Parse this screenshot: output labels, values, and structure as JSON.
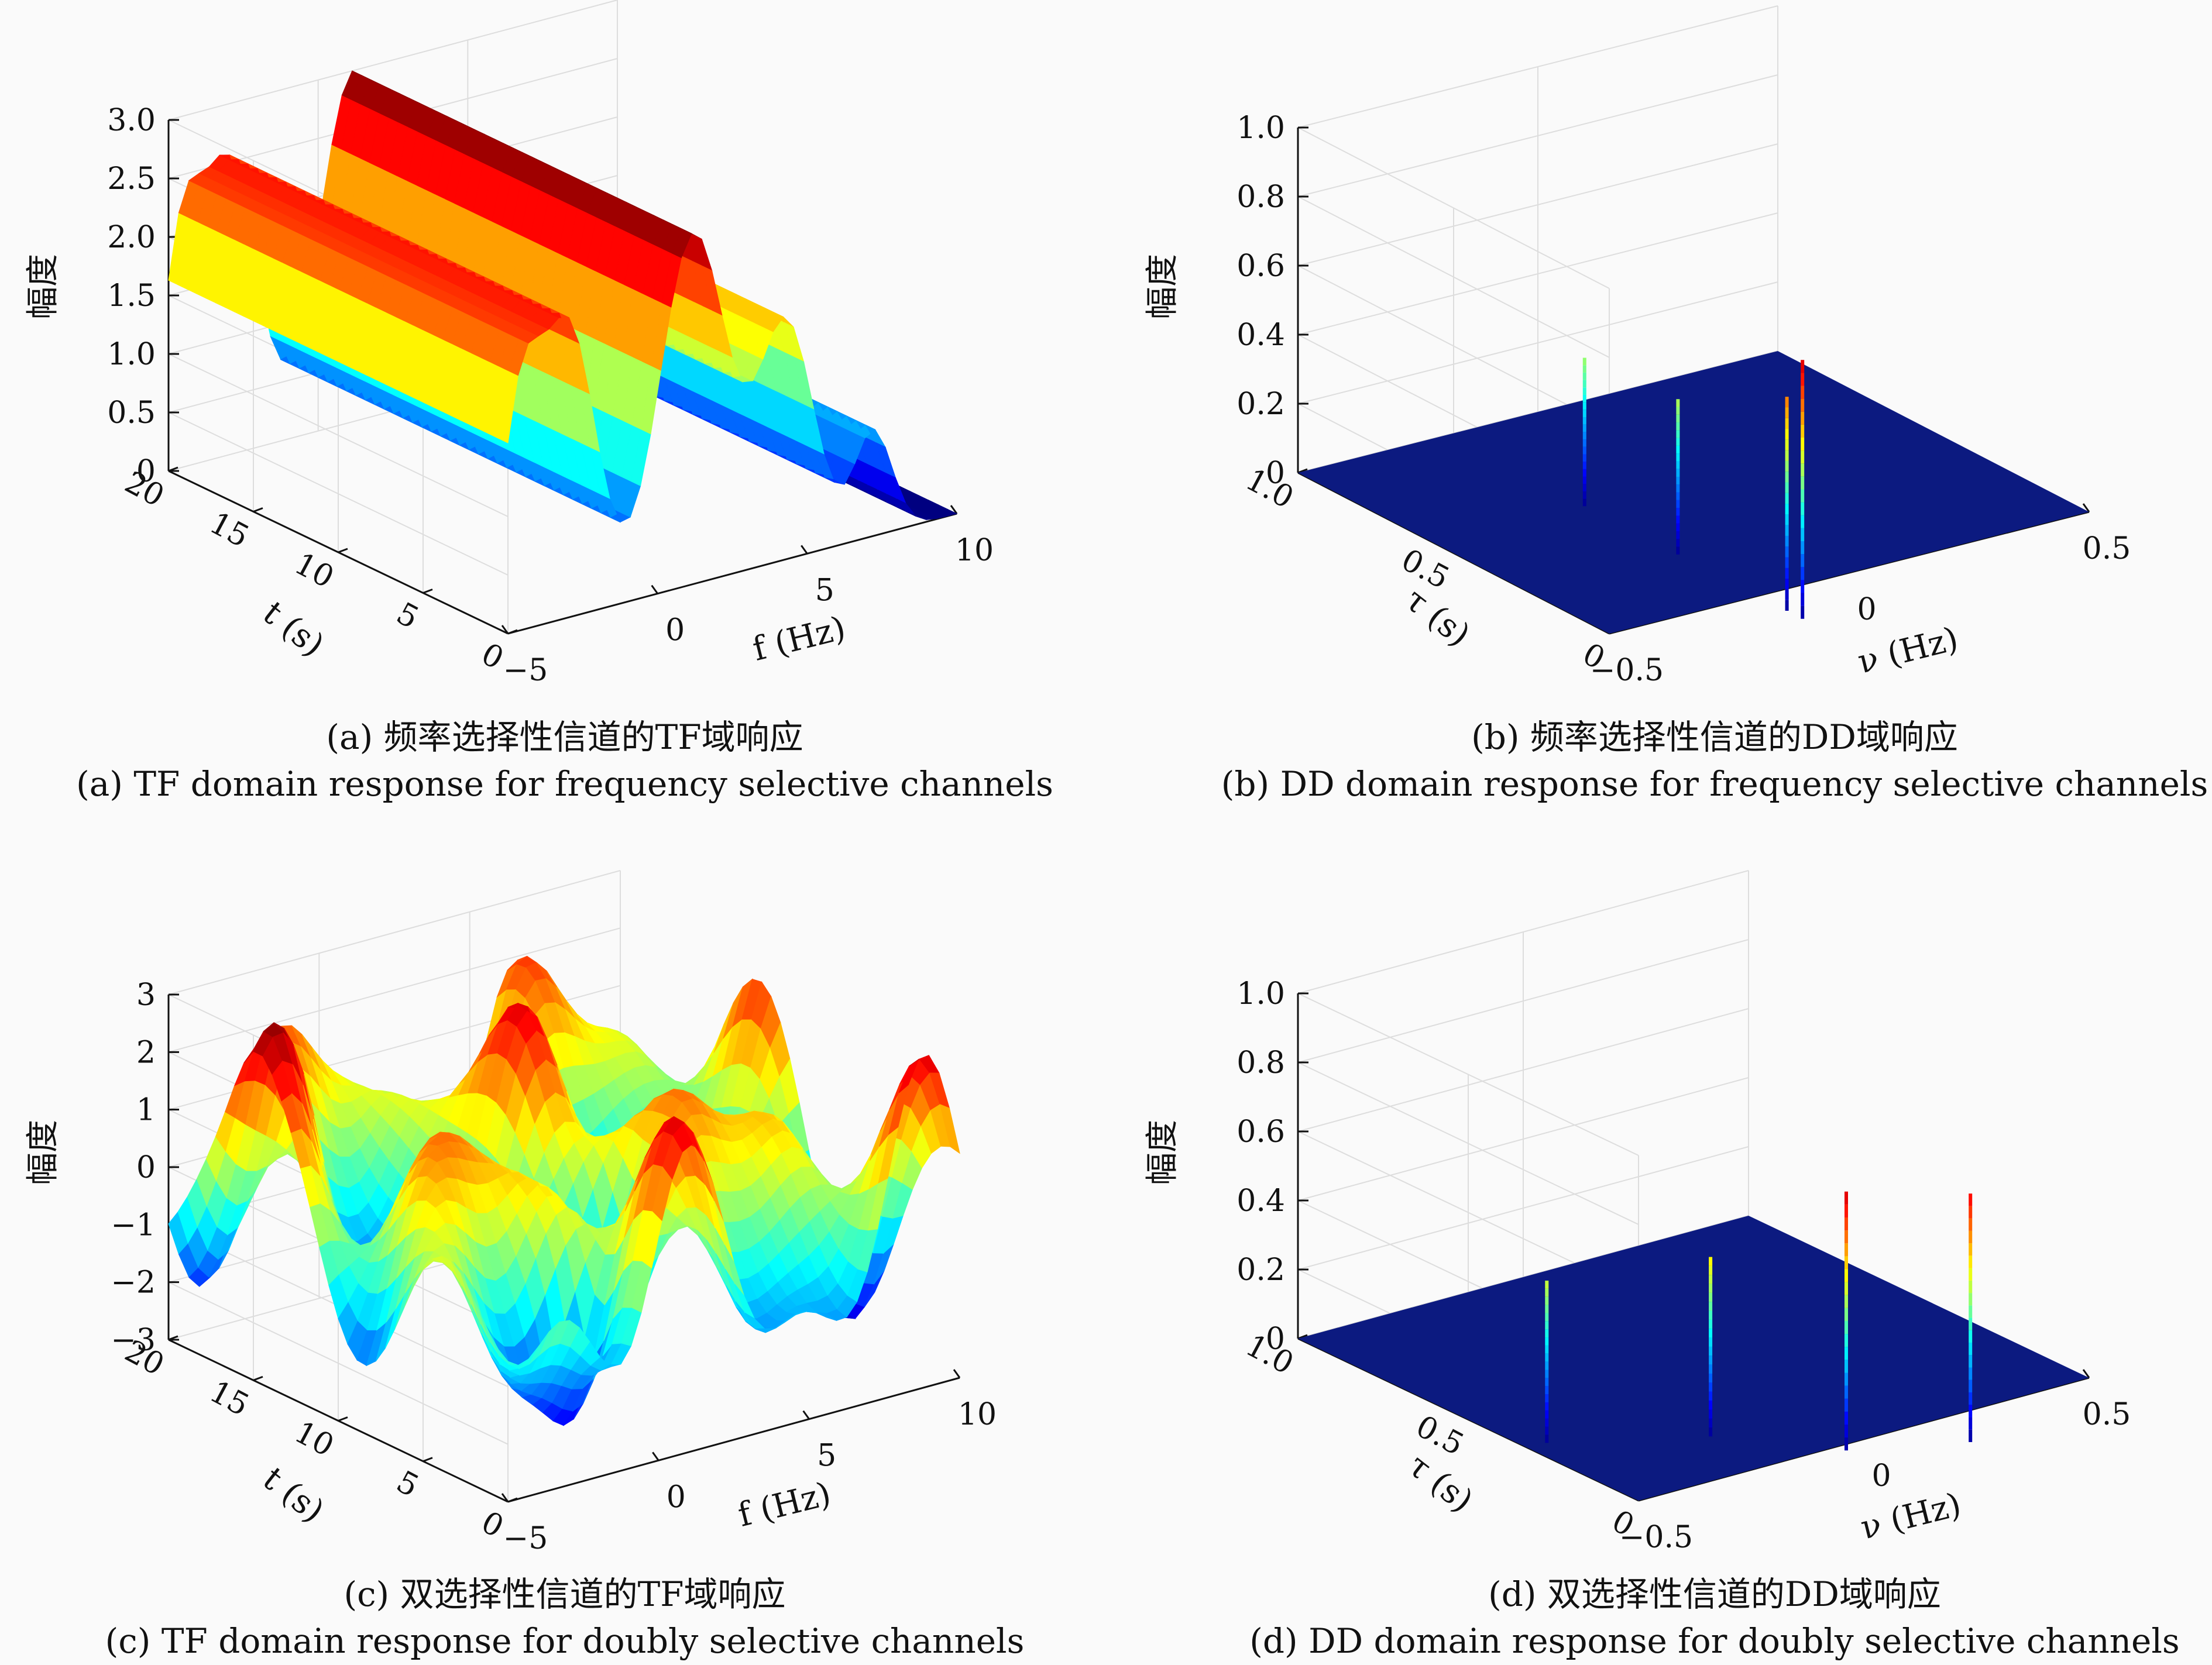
{
  "colors": {
    "background": "#fafafa",
    "colormap": "jet",
    "floor": "#0c1a80",
    "axis": "#111111",
    "grid": "#dddddd"
  },
  "chart_data": [
    {
      "id": "a",
      "type": "surface3d",
      "caption_cn": "(a) 频率选择性信道的TF域响应",
      "caption_en": "(a) TF domain response for frequency selective channels",
      "zlabel": "幅度",
      "xlabel": "f (Hz)",
      "ylabel": "t (s)",
      "xlim": [
        -5,
        10
      ],
      "ylim": [
        0,
        20
      ],
      "zlim": [
        0,
        3
      ],
      "xticks": [
        "−5",
        "0",
        "5",
        "10"
      ],
      "yticks": [
        "0",
        "5",
        "10",
        "15",
        "20"
      ],
      "zticks": [
        "0",
        "0.5",
        "1.0",
        "1.5",
        "2.0",
        "2.5",
        "3.0"
      ],
      "zmax": 3.0
    },
    {
      "id": "b",
      "type": "stem3d",
      "caption_cn": "(b) 频率选择性信道的DD域响应",
      "caption_en": "(b) DD domain response for frequency selective channels",
      "zlabel": "幅度",
      "xlabel": "ν (Hz)",
      "ylabel": "τ (s)",
      "xlim": [
        -0.5,
        0.5
      ],
      "ylim": [
        0,
        1.0
      ],
      "zlim": [
        0,
        1.0
      ],
      "xticks": [
        "−0.5",
        "0",
        "0.5"
      ],
      "yticks": [
        "0",
        "0.5",
        "1.0"
      ],
      "zticks": [
        "0",
        "0.2",
        "0.4",
        "0.6",
        "0.8",
        "1.0"
      ],
      "spikes": [
        {
          "nu": 0.0,
          "tau": 0.85,
          "amp": 0.43
        },
        {
          "nu": 0.0,
          "tau": 0.55,
          "amp": 0.45
        },
        {
          "nu": 0.0,
          "tau": 0.2,
          "amp": 0.62
        },
        {
          "nu": 0.0,
          "tau": 0.15,
          "amp": 0.75
        }
      ]
    },
    {
      "id": "c",
      "type": "surface3d",
      "caption_cn": "(c) 双选择性信道的TF域响应",
      "caption_en": "(c) TF domain response for doubly selective channels",
      "zlabel": "幅度",
      "xlabel": "f (Hz)",
      "ylabel": "t (s)",
      "xlim": [
        -5,
        10
      ],
      "ylim": [
        0,
        20
      ],
      "zlim": [
        -3,
        3
      ],
      "xticks": [
        "−5",
        "0",
        "5",
        "10"
      ],
      "yticks": [
        "0",
        "5",
        "10",
        "15",
        "20"
      ],
      "zticks": [
        "−3",
        "−2",
        "−1",
        "0",
        "1",
        "2",
        "3"
      ],
      "zmax": 3.2
    },
    {
      "id": "d",
      "type": "stem3d",
      "caption_cn": "(d) 双选择性信道的DD域响应",
      "caption_en": "(d) DD domain response for doubly selective channels",
      "zlabel": "幅度",
      "xlabel": "ν (Hz)",
      "ylabel": "τ (s)",
      "xlim": [
        -0.5,
        0.5
      ],
      "ylim": [
        0,
        1.0
      ],
      "zlim": [
        0,
        1.0
      ],
      "xticks": [
        "−0.5",
        "0",
        "0.5"
      ],
      "yticks": [
        "0",
        "0.5",
        "1.0"
      ],
      "zticks": [
        "0",
        "0.2",
        "0.4",
        "0.6",
        "0.8",
        "1.0"
      ],
      "spikes": [
        {
          "nu": -0.25,
          "tau": 0.6,
          "amp": 0.47
        },
        {
          "nu": 0.0,
          "tau": 0.45,
          "amp": 0.52
        },
        {
          "nu": 0.15,
          "tau": 0.25,
          "amp": 0.75
        },
        {
          "nu": 0.35,
          "tau": 0.15,
          "amp": 0.72
        }
      ]
    }
  ]
}
